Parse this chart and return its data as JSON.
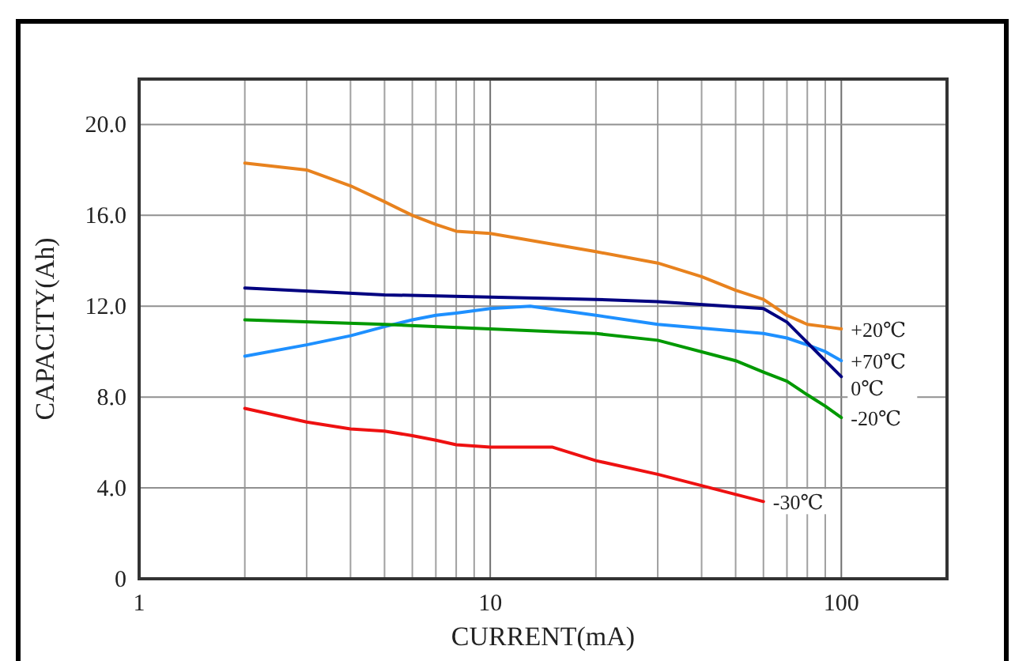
{
  "chart_data": {
    "type": "line",
    "xlabel": "CURRENT(mA)",
    "ylabel": "CAPACITY(Ah)",
    "log": "x",
    "grid": true,
    "marker": "none",
    "line_style": "solid",
    "xlim": [
      1,
      200
    ],
    "ylim": [
      0,
      22
    ],
    "xticks": [
      1,
      {
        "value": 2,
        "label": null
      },
      {
        "value": 3,
        "label": null
      },
      {
        "value": 4,
        "label": null
      },
      {
        "value": 5,
        "label": null
      },
      {
        "value": 6,
        "label": null
      },
      {
        "value": 7,
        "label": null
      },
      {
        "value": 8,
        "label": null
      },
      {
        "value": 9,
        "label": null
      },
      10,
      {
        "value": 20,
        "label": null
      },
      {
        "value": 30,
        "label": null
      },
      {
        "value": 40,
        "label": null
      },
      {
        "value": 50,
        "label": null
      },
      {
        "value": 60,
        "label": null
      },
      {
        "value": 70,
        "label": null
      },
      {
        "value": 80,
        "label": null
      },
      {
        "value": 90,
        "label": null
      },
      100
    ],
    "yticks": [
      {
        "value": 0,
        "label": "0"
      },
      {
        "value": 4,
        "label": "4.0"
      },
      {
        "value": 8,
        "label": "8.0"
      },
      {
        "value": 12,
        "label": "12.0"
      },
      {
        "value": 16,
        "label": "16.0"
      },
      {
        "value": 20,
        "label": "20.0"
      }
    ],
    "series": [
      {
        "name": "+20℃",
        "color": "#e8821e",
        "x": [
          2,
          3,
          4,
          5,
          6,
          7,
          8,
          10,
          20,
          30,
          40,
          50,
          60,
          70,
          80,
          90,
          100
        ],
        "values": [
          18.3,
          18.0,
          17.3,
          16.6,
          16.0,
          15.6,
          15.3,
          15.2,
          14.4,
          13.9,
          13.3,
          12.7,
          12.3,
          11.6,
          11.2,
          11.1,
          11.0
        ]
      },
      {
        "name": "+70℃",
        "color": "#1e90ff",
        "x": [
          2,
          3,
          4,
          5,
          6,
          7,
          8,
          10,
          13,
          20,
          30,
          60,
          70,
          80,
          90,
          100
        ],
        "values": [
          9.8,
          10.3,
          10.7,
          11.1,
          11.4,
          11.6,
          11.7,
          11.9,
          12.0,
          11.6,
          11.2,
          10.8,
          10.6,
          10.3,
          10.0,
          9.6
        ]
      },
      {
        "name": "0℃",
        "color": "#000080",
        "x": [
          2,
          5,
          10,
          20,
          30,
          60,
          70,
          80,
          90,
          100
        ],
        "values": [
          12.8,
          12.5,
          12.4,
          12.3,
          12.2,
          11.9,
          11.3,
          10.4,
          9.6,
          8.9
        ]
      },
      {
        "name": "-20℃",
        "color": "#009900",
        "x": [
          2,
          5,
          10,
          20,
          30,
          50,
          60,
          70,
          80,
          90,
          100
        ],
        "values": [
          11.4,
          11.2,
          11.0,
          10.8,
          10.5,
          9.6,
          9.1,
          8.7,
          8.1,
          7.6,
          7.1
        ]
      },
      {
        "name": "-30℃",
        "color": "#ee1111",
        "x": [
          2,
          3,
          4,
          5,
          6,
          7,
          8,
          10,
          15,
          20,
          30,
          60
        ],
        "values": [
          7.5,
          6.9,
          6.6,
          6.5,
          6.3,
          6.1,
          5.9,
          5.8,
          5.8,
          5.2,
          4.6,
          3.4
        ]
      }
    ]
  }
}
